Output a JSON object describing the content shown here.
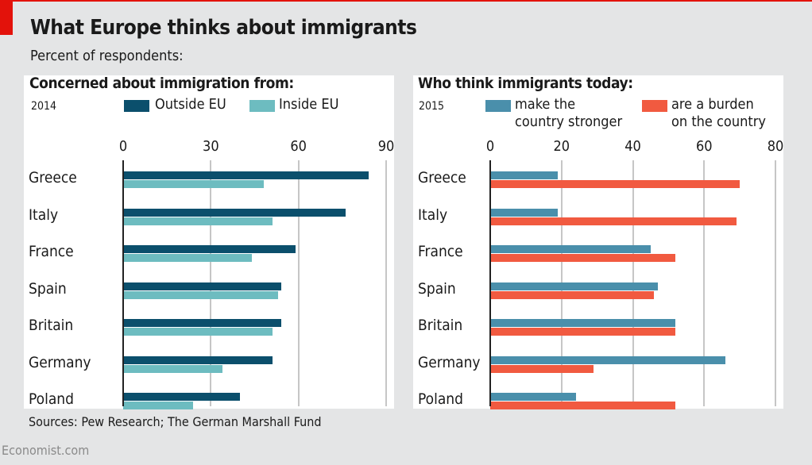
{
  "title": "What Europe thinks about immigrants",
  "subtitle": "Percent of respondents:",
  "source": "Sources: Pew Research; The German Marshall Fund",
  "brand": "Economist.com",
  "colors": {
    "accent": "#e3120b",
    "outside_eu": "#0b4f6c",
    "inside_eu": "#6dbcc0",
    "stronger": "#4a8fab",
    "burden": "#f15a40"
  },
  "chart_data": [
    {
      "type": "bar",
      "orientation": "horizontal",
      "title": "Concerned about immigration from:",
      "note": "2014",
      "categories": [
        "Greece",
        "Italy",
        "France",
        "Spain",
        "Britain",
        "Germany",
        "Poland"
      ],
      "xlim": [
        0,
        90
      ],
      "ticks": [
        "0",
        "30",
        "60",
        "90"
      ],
      "grid": true,
      "legend": "top",
      "series": [
        {
          "name": "Outside EU",
          "values": [
            84,
            76,
            59,
            54,
            54,
            51,
            40
          ]
        },
        {
          "name": "Inside EU",
          "values": [
            48,
            51,
            44,
            53,
            51,
            34,
            24
          ]
        }
      ]
    },
    {
      "type": "bar",
      "orientation": "horizontal",
      "title": "Who think immigrants today:",
      "note": "2015",
      "categories": [
        "Greece",
        "Italy",
        "France",
        "Spain",
        "Britain",
        "Germany",
        "Poland"
      ],
      "xlim": [
        0,
        80
      ],
      "ticks": [
        "0",
        "20",
        "40",
        "60",
        "80"
      ],
      "grid": true,
      "legend": "top",
      "series": [
        {
          "name": "make the country stronger",
          "name_lines": [
            "make the",
            "country stronger"
          ],
          "values": [
            19,
            19,
            45,
            47,
            52,
            66,
            24
          ]
        },
        {
          "name": "are a burden on the country",
          "name_lines": [
            "are a burden",
            "on the country"
          ],
          "values": [
            70,
            69,
            52,
            46,
            52,
            29,
            52
          ]
        }
      ]
    }
  ]
}
